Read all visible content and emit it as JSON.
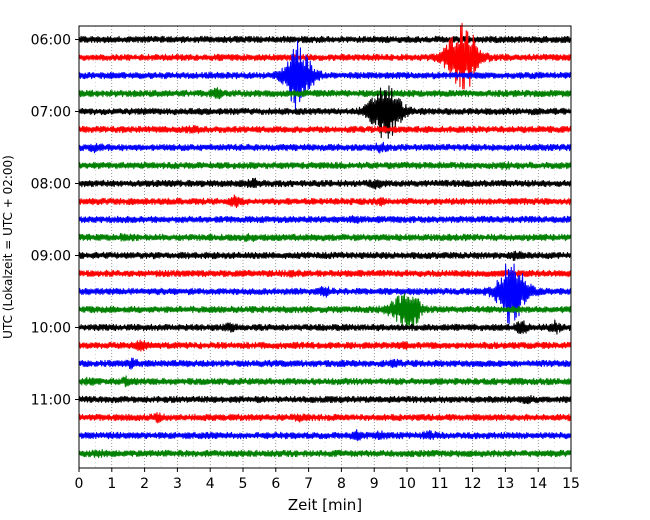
{
  "chart_data": {
    "type": "line",
    "xlabel": "Zeit  [min]",
    "ylabel": "UTC (Lokalzeit = UTC + 02:00)",
    "xlim": [
      0,
      15
    ],
    "x_ticks": [
      0,
      1,
      2,
      3,
      4,
      5,
      6,
      7,
      8,
      9,
      10,
      11,
      12,
      13,
      14,
      15
    ],
    "y_ticks": [
      "06:00",
      "07:00",
      "08:00",
      "09:00",
      "10:00",
      "11:00"
    ],
    "grid": "vertical-dotted",
    "trace_interval_min": 15,
    "start_time": "06:00",
    "trace_colors": [
      "#000000",
      "#ff0000",
      "#0000ff",
      "#008000"
    ],
    "traces": [
      {
        "time": "06:00",
        "color": "#000000",
        "events": []
      },
      {
        "time": "06:15",
        "color": "#ff0000",
        "events": [
          [
            11.5,
            2.6
          ],
          [
            11.8,
            4.0
          ]
        ]
      },
      {
        "time": "06:30",
        "color": "#0000ff",
        "events": [
          [
            6.6,
            1.8
          ],
          [
            6.7,
            4.2
          ]
        ]
      },
      {
        "time": "06:45",
        "color": "#008000",
        "events": [
          [
            4.2,
            1.0
          ]
        ]
      },
      {
        "time": "07:00",
        "color": "#000000",
        "events": [
          [
            9.2,
            2.8
          ],
          [
            9.5,
            2.6
          ]
        ]
      },
      {
        "time": "07:15",
        "color": "#ff0000",
        "events": [
          [
            3.5,
            0.8
          ]
        ]
      },
      {
        "time": "07:30",
        "color": "#0000ff",
        "events": [
          [
            0.5,
            0.9
          ],
          [
            9.2,
            1.0
          ]
        ]
      },
      {
        "time": "07:45",
        "color": "#008000",
        "events": [
          [
            13.0,
            0.8
          ]
        ]
      },
      {
        "time": "08:00",
        "color": "#000000",
        "events": [
          [
            5.3,
            1.0
          ],
          [
            9.1,
            1.0
          ]
        ]
      },
      {
        "time": "08:15",
        "color": "#ff0000",
        "events": [
          [
            4.8,
            1.2
          ],
          [
            9.2,
            0.8
          ]
        ]
      },
      {
        "time": "08:30",
        "color": "#0000ff",
        "events": [
          [
            8.4,
            0.8
          ]
        ]
      },
      {
        "time": "08:45",
        "color": "#008000",
        "events": [
          [
            1.4,
            0.8
          ],
          [
            5.2,
            0.8
          ]
        ]
      },
      {
        "time": "09:00",
        "color": "#000000",
        "events": [
          [
            13.3,
            0.9
          ]
        ]
      },
      {
        "time": "09:15",
        "color": "#ff0000",
        "events": [
          [
            6.6,
            0.8
          ]
        ]
      },
      {
        "time": "09:30",
        "color": "#0000ff",
        "events": [
          [
            13.1,
            3.0
          ],
          [
            13.3,
            2.8
          ],
          [
            7.5,
            1.0
          ]
        ]
      },
      {
        "time": "09:45",
        "color": "#008000",
        "events": [
          [
            9.9,
            2.6
          ],
          [
            10.2,
            2.0
          ]
        ]
      },
      {
        "time": "10:00",
        "color": "#000000",
        "events": [
          [
            4.6,
            0.9
          ],
          [
            13.5,
            1.3
          ],
          [
            14.5,
            1.2
          ]
        ]
      },
      {
        "time": "10:15",
        "color": "#ff0000",
        "events": [
          [
            1.9,
            1.0
          ],
          [
            9.9,
            0.8
          ]
        ]
      },
      {
        "time": "10:30",
        "color": "#0000ff",
        "events": [
          [
            1.6,
            1.0
          ],
          [
            9.6,
            0.8
          ]
        ]
      },
      {
        "time": "10:45",
        "color": "#008000",
        "events": [
          [
            1.5,
            1.0
          ],
          [
            0.3,
            0.8
          ]
        ]
      },
      {
        "time": "11:00",
        "color": "#000000",
        "events": [
          [
            13.7,
            1.0
          ]
        ]
      },
      {
        "time": "11:15",
        "color": "#ff0000",
        "events": [
          [
            2.4,
            0.9
          ],
          [
            6.7,
            0.8
          ]
        ]
      },
      {
        "time": "11:30",
        "color": "#0000ff",
        "events": [
          [
            8.5,
            1.0
          ],
          [
            9.2,
            1.0
          ],
          [
            10.7,
            0.9
          ]
        ]
      },
      {
        "time": "11:45",
        "color": "#008000",
        "events": [
          [
            0.6,
            0.8
          ]
        ]
      }
    ]
  }
}
